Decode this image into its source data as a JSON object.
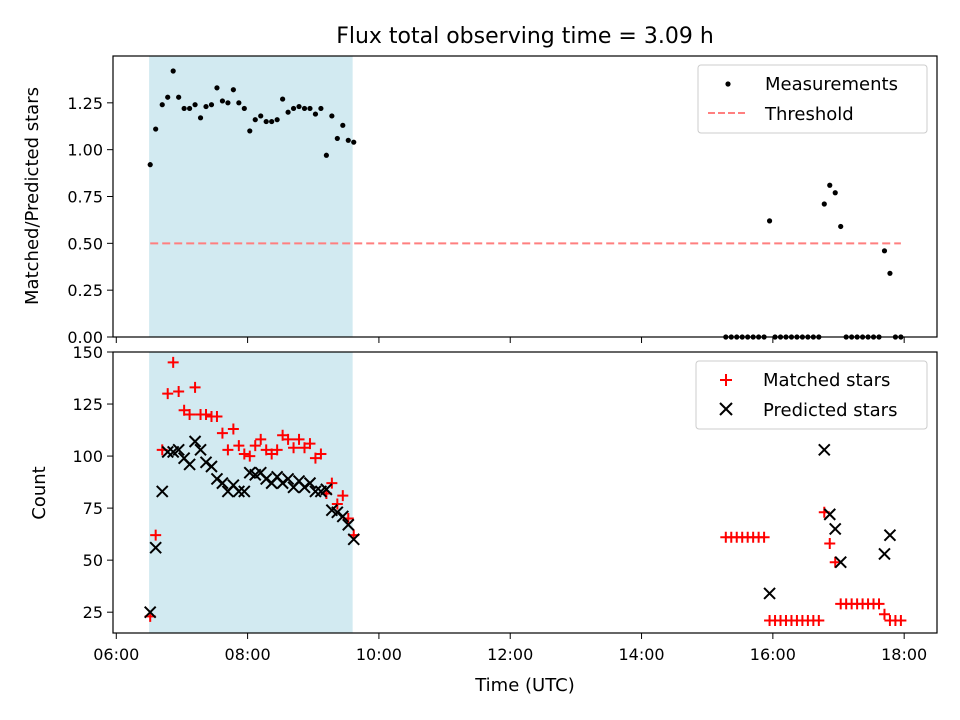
{
  "figure": {
    "title": "Flux total observing time = 3.09 h",
    "xlabel": "Time (UTC)",
    "x_unit": "hours UTC",
    "x_ticks": [
      {
        "value": 6,
        "label": "06:00"
      },
      {
        "value": 8,
        "label": "08:00"
      },
      {
        "value": 10,
        "label": "10:00"
      },
      {
        "value": 12,
        "label": "12:00"
      },
      {
        "value": 14,
        "label": "14:00"
      },
      {
        "value": 16,
        "label": "16:00"
      },
      {
        "value": 18,
        "label": "18:00"
      }
    ],
    "xlim": [
      "05:57",
      "18:30"
    ],
    "highlight_span": {
      "start": "06:30",
      "end": "09:36",
      "color": "#add8e6"
    }
  },
  "chart_data": [
    {
      "type": "scatter",
      "ylabel": "Matched/Predicted stars",
      "ylim": [
        0,
        1.5
      ],
      "y_ticks": [
        "0.00",
        "0.25",
        "0.50",
        "0.75",
        "1.00",
        "1.25"
      ],
      "legend_position": "top-right",
      "series": [
        {
          "name": "Measurements",
          "marker": "dot",
          "color": "#000000",
          "points": [
            [
              "06:31",
              0.92
            ],
            [
              "06:36",
              1.11
            ],
            [
              "06:42",
              1.24
            ],
            [
              "06:47",
              1.28
            ],
            [
              "06:52",
              1.42
            ],
            [
              "06:57",
              1.28
            ],
            [
              "07:02",
              1.22
            ],
            [
              "07:07",
              1.22
            ],
            [
              "07:12",
              1.24
            ],
            [
              "07:17",
              1.17
            ],
            [
              "07:22",
              1.23
            ],
            [
              "07:27",
              1.24
            ],
            [
              "07:32",
              1.33
            ],
            [
              "07:37",
              1.26
            ],
            [
              "07:42",
              1.25
            ],
            [
              "07:47",
              1.32
            ],
            [
              "07:52",
              1.25
            ],
            [
              "07:57",
              1.22
            ],
            [
              "08:02",
              1.1
            ],
            [
              "08:07",
              1.16
            ],
            [
              "08:12",
              1.18
            ],
            [
              "08:17",
              1.15
            ],
            [
              "08:22",
              1.15
            ],
            [
              "08:27",
              1.16
            ],
            [
              "08:32",
              1.27
            ],
            [
              "08:37",
              1.2
            ],
            [
              "08:42",
              1.22
            ],
            [
              "08:47",
              1.23
            ],
            [
              "08:52",
              1.22
            ],
            [
              "08:57",
              1.22
            ],
            [
              "09:02",
              1.19
            ],
            [
              "09:07",
              1.22
            ],
            [
              "09:12",
              0.97
            ],
            [
              "09:17",
              1.18
            ],
            [
              "09:22",
              1.06
            ],
            [
              "09:27",
              1.13
            ],
            [
              "09:32",
              1.05
            ],
            [
              "09:37",
              1.04
            ],
            [
              "15:17",
              0.0
            ],
            [
              "15:22",
              0.0
            ],
            [
              "15:27",
              0.0
            ],
            [
              "15:32",
              0.0
            ],
            [
              "15:37",
              0.0
            ],
            [
              "15:42",
              0.0
            ],
            [
              "15:47",
              0.0
            ],
            [
              "15:52",
              0.0
            ],
            [
              "15:57",
              0.62
            ],
            [
              "16:02",
              0.0
            ],
            [
              "16:07",
              0.0
            ],
            [
              "16:12",
              0.0
            ],
            [
              "16:17",
              0.0
            ],
            [
              "16:22",
              0.0
            ],
            [
              "16:27",
              0.0
            ],
            [
              "16:32",
              0.0
            ],
            [
              "16:37",
              0.0
            ],
            [
              "16:42",
              0.0
            ],
            [
              "16:47",
              0.71
            ],
            [
              "16:52",
              0.81
            ],
            [
              "16:57",
              0.77
            ],
            [
              "17:02",
              0.59
            ],
            [
              "17:07",
              0.0
            ],
            [
              "17:12",
              0.0
            ],
            [
              "17:17",
              0.0
            ],
            [
              "17:22",
              0.0
            ],
            [
              "17:27",
              0.0
            ],
            [
              "17:32",
              0.0
            ],
            [
              "17:37",
              0.0
            ],
            [
              "17:42",
              0.46
            ],
            [
              "17:47",
              0.34
            ],
            [
              "17:52",
              0.0
            ],
            [
              "17:57",
              0.0
            ]
          ]
        },
        {
          "name": "Threshold",
          "style": "dashed-line",
          "color": "#ff7f7f",
          "points": [
            [
              "06:31",
              0.5
            ],
            [
              "17:57",
              0.5
            ]
          ]
        }
      ]
    },
    {
      "type": "scatter",
      "ylabel": "Count",
      "ylim": [
        15,
        150
      ],
      "y_ticks": [
        "25",
        "50",
        "75",
        "100",
        "125",
        "150"
      ],
      "legend_position": "top-right",
      "series": [
        {
          "name": "Matched stars",
          "marker": "plus",
          "color": "#ff0000",
          "points": [
            [
              "06:31",
              23
            ],
            [
              "06:36",
              62
            ],
            [
              "06:42",
              103
            ],
            [
              "06:47",
              130
            ],
            [
              "06:52",
              145
            ],
            [
              "06:57",
              131
            ],
            [
              "07:02",
              122
            ],
            [
              "07:07",
              120
            ],
            [
              "07:12",
              133
            ],
            [
              "07:17",
              120
            ],
            [
              "07:22",
              120
            ],
            [
              "07:27",
              119
            ],
            [
              "07:32",
              119
            ],
            [
              "07:37",
              111
            ],
            [
              "07:42",
              103
            ],
            [
              "07:47",
              113
            ],
            [
              "07:52",
              105
            ],
            [
              "07:57",
              101
            ],
            [
              "08:02",
              100
            ],
            [
              "08:07",
              105
            ],
            [
              "08:12",
              108
            ],
            [
              "08:17",
              103
            ],
            [
              "08:22",
              101
            ],
            [
              "08:27",
              103
            ],
            [
              "08:32",
              110
            ],
            [
              "08:37",
              108
            ],
            [
              "08:42",
              104
            ],
            [
              "08:47",
              108
            ],
            [
              "08:52",
              104
            ],
            [
              "08:57",
              106
            ],
            [
              "09:02",
              99
            ],
            [
              "09:07",
              101
            ],
            [
              "09:12",
              82
            ],
            [
              "09:17",
              87
            ],
            [
              "09:22",
              77
            ],
            [
              "09:27",
              81
            ],
            [
              "09:32",
              70
            ],
            [
              "09:37",
              62
            ],
            [
              "15:17",
              61
            ],
            [
              "15:22",
              61
            ],
            [
              "15:27",
              61
            ],
            [
              "15:32",
              61
            ],
            [
              "15:37",
              61
            ],
            [
              "15:42",
              61
            ],
            [
              "15:47",
              61
            ],
            [
              "15:52",
              61
            ],
            [
              "15:57",
              21
            ],
            [
              "16:02",
              21
            ],
            [
              "16:07",
              21
            ],
            [
              "16:12",
              21
            ],
            [
              "16:17",
              21
            ],
            [
              "16:22",
              21
            ],
            [
              "16:27",
              21
            ],
            [
              "16:32",
              21
            ],
            [
              "16:37",
              21
            ],
            [
              "16:42",
              21
            ],
            [
              "16:47",
              73
            ],
            [
              "16:52",
              58
            ],
            [
              "16:57",
              49
            ],
            [
              "17:02",
              29
            ],
            [
              "17:07",
              29
            ],
            [
              "17:12",
              29
            ],
            [
              "17:17",
              29
            ],
            [
              "17:22",
              29
            ],
            [
              "17:27",
              29
            ],
            [
              "17:32",
              29
            ],
            [
              "17:37",
              29
            ],
            [
              "17:42",
              24
            ],
            [
              "17:47",
              21
            ],
            [
              "17:52",
              21
            ],
            [
              "17:57",
              21
            ]
          ]
        },
        {
          "name": "Predicted stars",
          "marker": "x",
          "color": "#000000",
          "points": [
            [
              "06:31",
              25
            ],
            [
              "06:36",
              56
            ],
            [
              "06:42",
              83
            ],
            [
              "06:47",
              102
            ],
            [
              "06:52",
              102
            ],
            [
              "06:57",
              103
            ],
            [
              "07:02",
              99
            ],
            [
              "07:07",
              96
            ],
            [
              "07:12",
              107
            ],
            [
              "07:17",
              103
            ],
            [
              "07:22",
              97
            ],
            [
              "07:27",
              95
            ],
            [
              "07:32",
              89
            ],
            [
              "07:37",
              87
            ],
            [
              "07:42",
              83
            ],
            [
              "07:47",
              86
            ],
            [
              "07:52",
              83
            ],
            [
              "07:57",
              83
            ],
            [
              "08:02",
              92
            ],
            [
              "08:07",
              91
            ],
            [
              "08:12",
              92
            ],
            [
              "08:17",
              89
            ],
            [
              "08:22",
              87
            ],
            [
              "08:27",
              90
            ],
            [
              "08:32",
              87
            ],
            [
              "08:37",
              89
            ],
            [
              "08:42",
              85
            ],
            [
              "08:47",
              88
            ],
            [
              "08:52",
              85
            ],
            [
              "08:57",
              87
            ],
            [
              "09:02",
              83
            ],
            [
              "09:07",
              83
            ],
            [
              "09:12",
              84
            ],
            [
              "09:17",
              74
            ],
            [
              "09:22",
              73
            ],
            [
              "09:27",
              71
            ],
            [
              "09:32",
              67
            ],
            [
              "09:37",
              60
            ],
            [
              "15:57",
              34
            ],
            [
              "16:47",
              103
            ],
            [
              "16:52",
              72
            ],
            [
              "16:57",
              65
            ],
            [
              "17:02",
              49
            ],
            [
              "17:42",
              53
            ],
            [
              "17:47",
              62
            ]
          ]
        }
      ]
    }
  ]
}
